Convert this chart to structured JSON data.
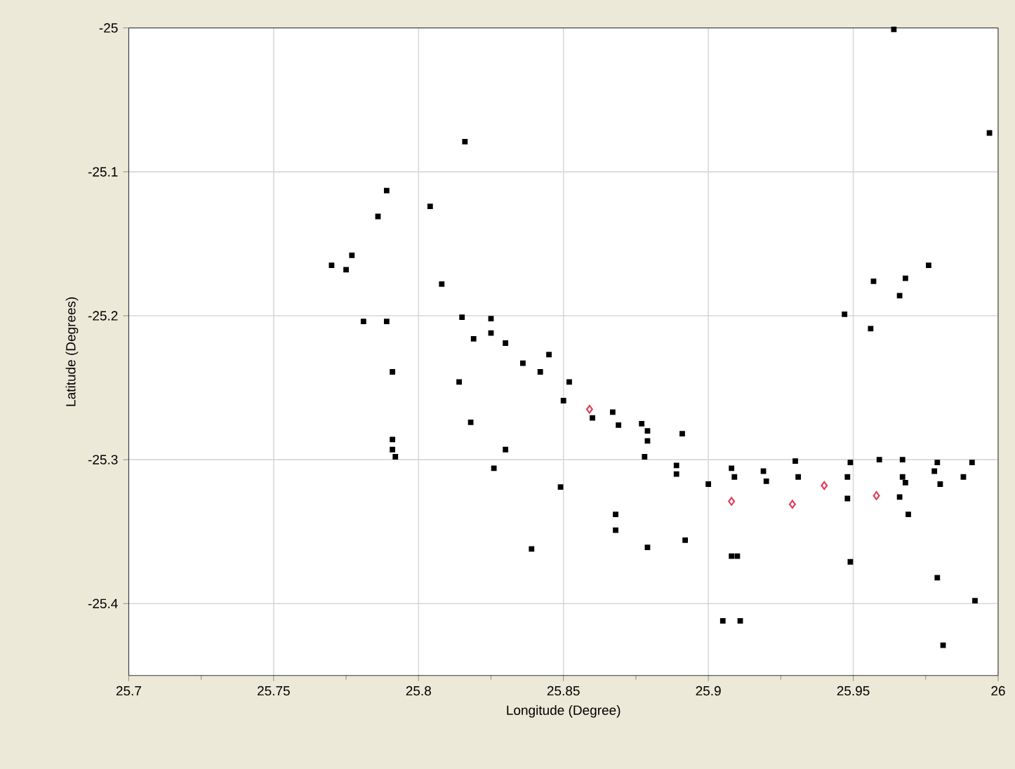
{
  "chart_data": {
    "type": "scatter",
    "xlabel": "Longitude (Degree)",
    "ylabel": "Latitude (Degrees)",
    "xlim": [
      25.7,
      26
    ],
    "ylim": [
      -25.45,
      -25
    ],
    "xticks": [
      25.7,
      {
        "value": 25.725,
        "label": null
      },
      25.75,
      {
        "value": 25.775,
        "label": null
      },
      25.8,
      {
        "value": 25.825,
        "label": null
      },
      25.85,
      {
        "value": 25.875,
        "label": null
      },
      25.9,
      {
        "value": 25.925,
        "label": null
      },
      25.95,
      {
        "value": 25.975,
        "label": null
      },
      26
    ],
    "yticks": [
      -25.4,
      -25.3,
      -25.2,
      -25.1,
      -25
    ],
    "grid": true,
    "series": [
      {
        "color": "#000000",
        "marker": "square",
        "x": [
          25.816,
          25.789,
          25.804,
          25.786,
          25.777,
          25.77,
          25.775,
          25.808,
          25.781,
          25.789,
          25.815,
          25.825,
          25.825,
          25.819,
          25.83,
          25.845,
          25.836,
          25.842,
          25.791,
          25.814,
          25.852,
          25.85,
          25.818,
          25.791,
          25.791,
          25.792,
          25.83,
          25.826,
          25.849,
          25.839,
          25.86,
          25.867,
          25.869,
          25.877,
          25.879,
          25.879,
          25.891,
          25.878,
          25.889,
          25.889,
          25.9,
          25.908,
          25.909,
          25.919,
          25.92,
          25.868,
          25.868,
          25.879,
          25.892,
          25.908,
          25.91,
          25.905,
          25.911,
          25.976,
          25.957,
          25.968,
          25.966,
          25.947,
          25.956,
          25.93,
          25.949,
          25.959,
          25.967,
          25.979,
          25.991,
          25.931,
          25.948,
          25.967,
          25.968,
          25.978,
          25.98,
          25.988,
          25.948,
          25.966,
          25.969,
          25.949,
          25.979,
          25.992,
          25.981,
          25.964,
          25.997
        ],
        "values": [
          -25.079,
          -25.113,
          -25.124,
          -25.131,
          -25.158,
          -25.165,
          -25.168,
          -25.178,
          -25.204,
          -25.204,
          -25.201,
          -25.202,
          -25.212,
          -25.216,
          -25.219,
          -25.227,
          -25.233,
          -25.239,
          -25.239,
          -25.246,
          -25.246,
          -25.259,
          -25.274,
          -25.286,
          -25.293,
          -25.298,
          -25.293,
          -25.306,
          -25.319,
          -25.362,
          -25.271,
          -25.267,
          -25.276,
          -25.275,
          -25.28,
          -25.287,
          -25.282,
          -25.298,
          -25.304,
          -25.31,
          -25.317,
          -25.306,
          -25.312,
          -25.308,
          -25.315,
          -25.338,
          -25.349,
          -25.361,
          -25.356,
          -25.367,
          -25.367,
          -25.412,
          -25.412,
          -25.165,
          -25.176,
          -25.174,
          -25.186,
          -25.199,
          -25.209,
          -25.301,
          -25.302,
          -25.3,
          -25.3,
          -25.302,
          -25.302,
          -25.312,
          -25.312,
          -25.312,
          -25.316,
          -25.308,
          -25.317,
          -25.312,
          -25.327,
          -25.326,
          -25.338,
          -25.371,
          -25.382,
          -25.398,
          -25.429,
          -25.001,
          -25.073
        ]
      },
      {
        "color": "#e0405a",
        "marker": "diamond",
        "x": [
          25.859,
          25.908,
          25.929,
          25.94,
          25.958
        ],
        "values": [
          -25.265,
          -25.329,
          -25.331,
          -25.318,
          -25.325
        ]
      }
    ]
  }
}
